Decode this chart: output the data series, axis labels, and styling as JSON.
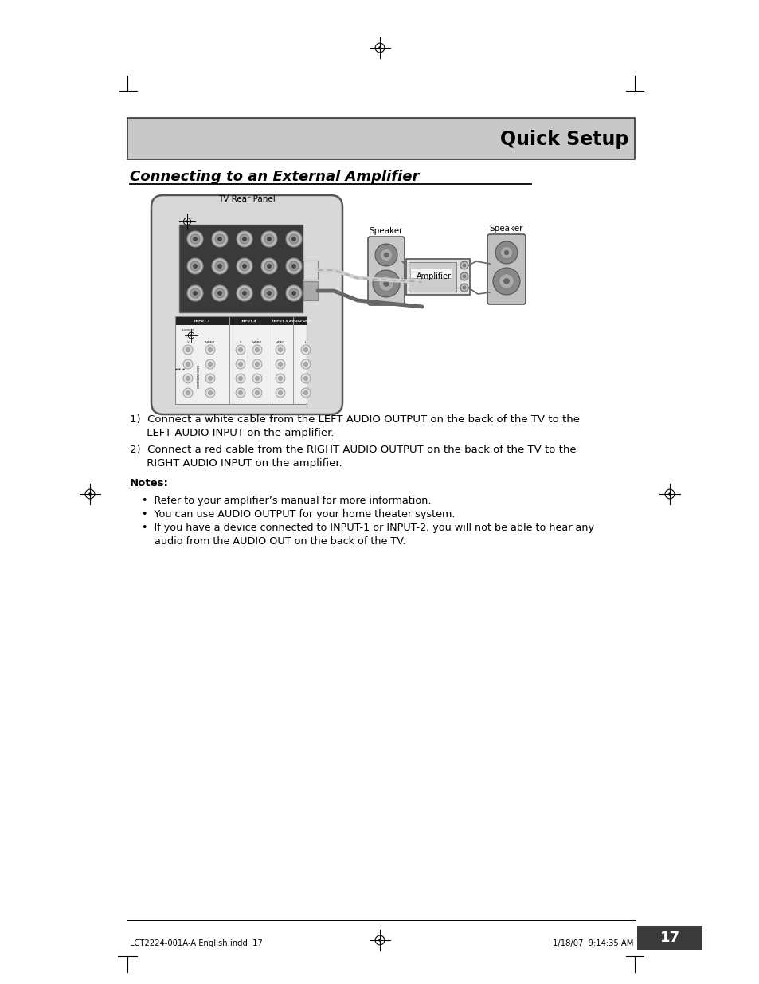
{
  "page_bg": "#ffffff",
  "header_bg": "#c8c8c8",
  "header_text": "Quick Setup",
  "section_title": "Connecting to an External Amplifier",
  "tv_label": "TV Rear Panel",
  "speaker_label_left": "Speaker",
  "amplifier_label": "Amplifier",
  "speaker_label_right": "Speaker",
  "notes_header": "Notes:",
  "note1": "•  Refer to your amplifier’s manual for more information.",
  "note2": "•  You can use AUDIO OUTPUT for your home theater system.",
  "note3": "•  If you have a device connected to INPUT-1 or INPUT-2, you will not be able to hear any",
  "note3b": "    audio from the AUDIO OUT on the back of the TV.",
  "page_number": "17",
  "footer_left": "LCT2224-001A-A English.indd  17",
  "footer_right": "1/18/07  9:14:35 AM"
}
